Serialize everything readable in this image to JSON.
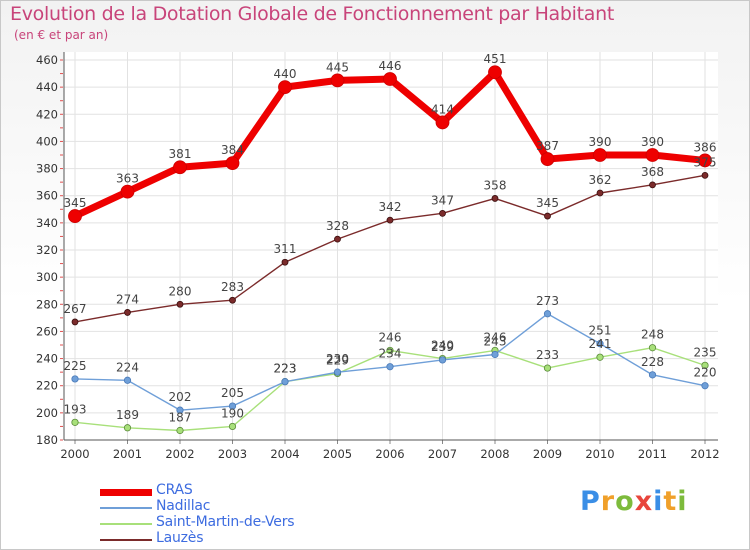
{
  "title": "Evolution de la Dotation Globale de Fonctionnement par Habitant",
  "subtitle": "(en € et par an)",
  "logo": {
    "letters": [
      {
        "ch": "P",
        "color": "#3a8ee6"
      },
      {
        "ch": "r",
        "color": "#f0a02a"
      },
      {
        "ch": "o",
        "color": "#7dbb3c"
      },
      {
        "ch": "x",
        "color": "#e8453c"
      },
      {
        "ch": "i",
        "color": "#3a8ee6"
      },
      {
        "ch": "t",
        "color": "#f0a02a"
      },
      {
        "ch": "i",
        "color": "#7dbb3c"
      }
    ]
  },
  "chart_data": {
    "type": "line",
    "title": "Evolution de la Dotation Globale de Fonctionnement par Habitant",
    "subtitle": "(en € et par an)",
    "xlabel": "",
    "ylabel": "",
    "x": [
      "2000",
      "2001",
      "2002",
      "2003",
      "2004",
      "2005",
      "2006",
      "2007",
      "2008",
      "2009",
      "2010",
      "2011",
      "2012"
    ],
    "ylim": [
      180,
      460
    ],
    "yticks": [
      180,
      200,
      220,
      240,
      260,
      280,
      300,
      320,
      340,
      360,
      380,
      400,
      420,
      440,
      460
    ],
    "grid": true,
    "legend_position": "bottom-left",
    "series": [
      {
        "name": "CRAS",
        "color": "#ee0000",
        "values": [
          345,
          363,
          381,
          384,
          440,
          445,
          446,
          414,
          451,
          387,
          390,
          390,
          386
        ],
        "labels": [
          "345",
          "363",
          "381",
          "384",
          "440",
          "445",
          "446",
          "414",
          "451",
          "387",
          "390",
          "390",
          "386"
        ]
      },
      {
        "name": "Nadillac",
        "color": "#6f9fd8",
        "values": [
          225,
          224,
          202,
          205,
          223,
          230,
          234,
          239,
          243,
          273,
          251,
          228,
          220
        ],
        "labels": [
          "225",
          "224",
          "202",
          "205",
          "223",
          "230",
          "234",
          "239",
          "243",
          "273",
          "251",
          "228",
          "220"
        ]
      },
      {
        "name": "Saint-Martin-de-Vers",
        "color": "#a8e07a",
        "values": [
          193,
          189,
          187,
          190,
          223,
          229,
          246,
          240,
          246,
          233,
          241,
          248,
          235
        ],
        "labels": [
          "193",
          "189",
          "187",
          "190",
          "223",
          "229",
          "246",
          "240",
          "246",
          "233",
          "241",
          "248",
          "235"
        ]
      },
      {
        "name": "Lauzès",
        "color": "#7b2b2b",
        "values": [
          267,
          274,
          280,
          283,
          311,
          328,
          342,
          347,
          358,
          345,
          362,
          368,
          375
        ],
        "labels": [
          "267",
          "274",
          "280",
          "283",
          "311",
          "328",
          "342",
          "347",
          "358",
          "345",
          "362",
          "368",
          "375"
        ]
      }
    ]
  }
}
